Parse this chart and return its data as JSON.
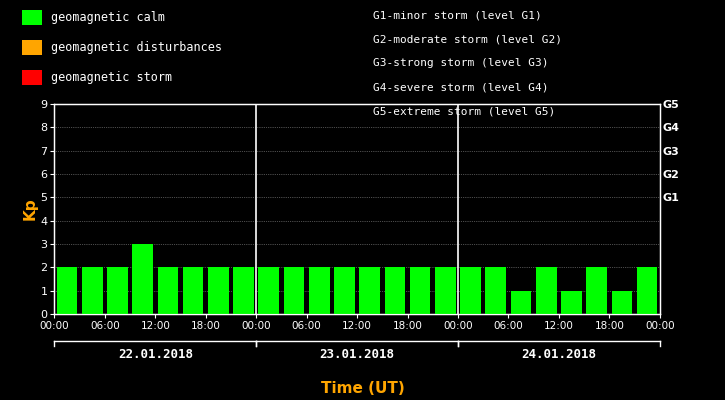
{
  "background_color": "#000000",
  "plot_bg_color": "#000000",
  "bar_color_calm": "#00ff00",
  "bar_color_disturbance": "#ffa500",
  "bar_color_storm": "#ff0000",
  "axis_label_color": "#ffa500",
  "tick_label_color": "#ffffff",
  "date_label_color": "#ffffff",
  "right_label_color": "#ffffff",
  "legend_text_color": "#ffffff",
  "kp_values": [
    2,
    2,
    2,
    3,
    2,
    2,
    2,
    2,
    2,
    2,
    2,
    2,
    2,
    2,
    2,
    2,
    2,
    2,
    1,
    2,
    1,
    2,
    1,
    2
  ],
  "kp_colors": [
    "#00ff00",
    "#00ff00",
    "#00ff00",
    "#00ff00",
    "#00ff00",
    "#00ff00",
    "#00ff00",
    "#00ff00",
    "#00ff00",
    "#00ff00",
    "#00ff00",
    "#00ff00",
    "#00ff00",
    "#00ff00",
    "#00ff00",
    "#00ff00",
    "#00ff00",
    "#00ff00",
    "#00ff00",
    "#00ff00",
    "#00ff00",
    "#00ff00",
    "#00ff00",
    "#00ff00"
  ],
  "ylim": [
    0,
    9
  ],
  "yticks": [
    0,
    1,
    2,
    3,
    4,
    5,
    6,
    7,
    8,
    9
  ],
  "right_ytick_positions": [
    5,
    6,
    7,
    8,
    9
  ],
  "right_labels": [
    "G1",
    "G2",
    "G3",
    "G4",
    "G5"
  ],
  "day_labels": [
    "22.01.2018",
    "23.01.2018",
    "24.01.2018"
  ],
  "time_ticks": [
    "00:00",
    "06:00",
    "12:00",
    "18:00",
    "00:00"
  ],
  "ylabel": "Kp",
  "xlabel": "Time (UT)",
  "legend_items": [
    {
      "label": "geomagnetic calm",
      "color": "#00ff00"
    },
    {
      "label": "geomagnetic disturbances",
      "color": "#ffa500"
    },
    {
      "label": "geomagnetic storm",
      "color": "#ff0000"
    }
  ],
  "storm_legend": [
    "G1-minor storm (level G1)",
    "G2-moderate storm (level G2)",
    "G3-strong storm (level G3)",
    "G4-severe storm (level G4)",
    "G5-extreme storm (level G5)"
  ],
  "bar_width": 0.82,
  "num_days": 3,
  "bars_per_day": 8
}
